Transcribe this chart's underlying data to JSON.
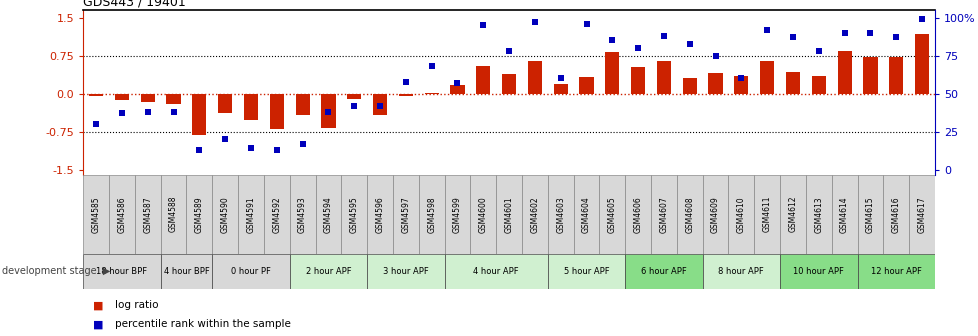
{
  "title": "GDS443 / 19401",
  "samples": [
    "GSM4585",
    "GSM4586",
    "GSM4587",
    "GSM4588",
    "GSM4589",
    "GSM4590",
    "GSM4591",
    "GSM4592",
    "GSM4593",
    "GSM4594",
    "GSM4595",
    "GSM4596",
    "GSM4597",
    "GSM4598",
    "GSM4599",
    "GSM4600",
    "GSM4601",
    "GSM4602",
    "GSM4603",
    "GSM4604",
    "GSM4605",
    "GSM4606",
    "GSM4607",
    "GSM4608",
    "GSM4609",
    "GSM4610",
    "GSM4611",
    "GSM4612",
    "GSM4613",
    "GSM4614",
    "GSM4615",
    "GSM4616",
    "GSM4617"
  ],
  "log_ratio": [
    -0.04,
    -0.13,
    -0.17,
    -0.2,
    -0.82,
    -0.38,
    -0.52,
    -0.7,
    -0.43,
    -0.68,
    -0.1,
    -0.43,
    -0.04,
    0.02,
    0.17,
    0.55,
    0.38,
    0.65,
    0.2,
    0.32,
    0.82,
    0.52,
    0.65,
    0.3,
    0.4,
    0.35,
    0.65,
    0.42,
    0.35,
    0.85,
    0.72,
    0.72,
    1.18
  ],
  "percentile": [
    30,
    37,
    38,
    38,
    13,
    20,
    14,
    13,
    17,
    38,
    42,
    42,
    58,
    68,
    57,
    95,
    78,
    97,
    60,
    96,
    85,
    80,
    88,
    83,
    75,
    60,
    92,
    87,
    78,
    90,
    90,
    87,
    99
  ],
  "stages": [
    {
      "label": "18 hour BPF",
      "start": 0,
      "end": 3,
      "color": "#d8d8d8"
    },
    {
      "label": "4 hour BPF",
      "start": 3,
      "end": 5,
      "color": "#d8d8d8"
    },
    {
      "label": "0 hour PF",
      "start": 5,
      "end": 8,
      "color": "#d8d8d8"
    },
    {
      "label": "2 hour APF",
      "start": 8,
      "end": 11,
      "color": "#d0f0d0"
    },
    {
      "label": "3 hour APF",
      "start": 11,
      "end": 14,
      "color": "#d0f0d0"
    },
    {
      "label": "4 hour APF",
      "start": 14,
      "end": 18,
      "color": "#d0f0d0"
    },
    {
      "label": "5 hour APF",
      "start": 18,
      "end": 21,
      "color": "#d0f0d0"
    },
    {
      "label": "6 hour APF",
      "start": 21,
      "end": 24,
      "color": "#88dd88"
    },
    {
      "label": "8 hour APF",
      "start": 24,
      "end": 27,
      "color": "#d0f0d0"
    },
    {
      "label": "10 hour APF",
      "start": 27,
      "end": 30,
      "color": "#88dd88"
    },
    {
      "label": "12 hour APF",
      "start": 30,
      "end": 33,
      "color": "#88dd88"
    }
  ],
  "ylim": [
    -1.6,
    1.65
  ],
  "yticks_left": [
    -1.5,
    -0.75,
    0.0,
    0.75,
    1.5
  ],
  "yticks_right": [
    0,
    25,
    50,
    75,
    100
  ],
  "bar_color": "#cc2200",
  "dot_color": "#0000bb",
  "hline_color": "#cc2200",
  "background_color": "#ffffff",
  "sample_cell_color": "#d8d8d8",
  "sample_cell_border": "#888888"
}
